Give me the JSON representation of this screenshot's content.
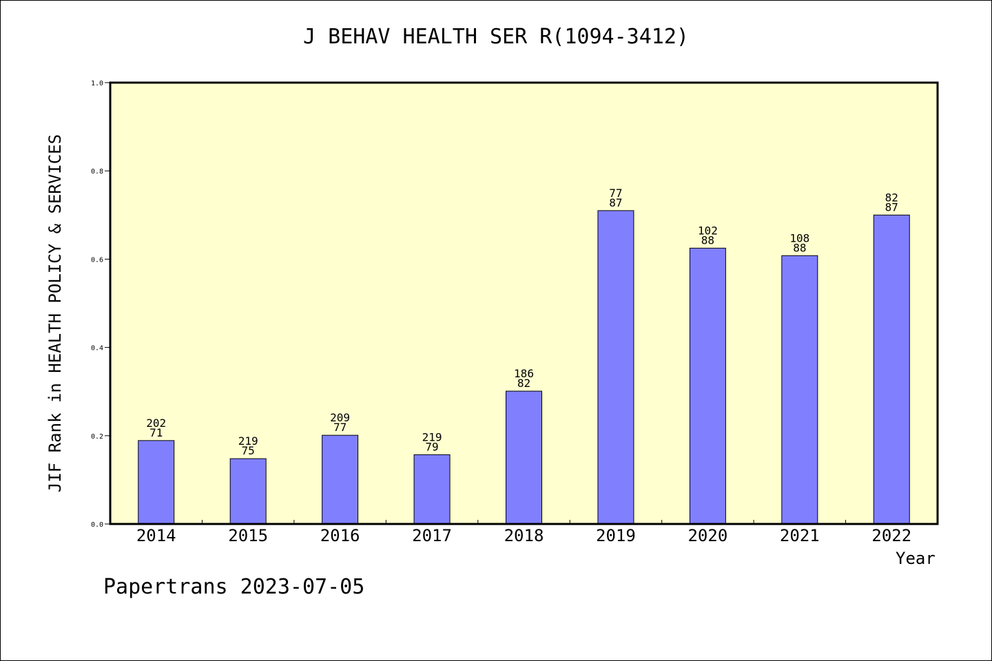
{
  "colors": {
    "plot_bg": "#ffffd0",
    "bar": "#8080ff",
    "axis": "#000000"
  },
  "footer": "Papertrans 2023-07-05",
  "chart_data": {
    "type": "bar",
    "title": "J BEHAV HEALTH SER R(1094-3412)",
    "xlabel": "Year",
    "ylabel": "JIF Rank in HEALTH POLICY & SERVICES",
    "ylim": [
      0,
      1.0
    ],
    "yticks": [
      "0.0",
      "0.2",
      "0.4",
      "0.6",
      "0.8",
      "1.0"
    ],
    "grid": false,
    "categories": [
      "2014",
      "2015",
      "2016",
      "2017",
      "2018",
      "2019",
      "2020",
      "2021",
      "2022"
    ],
    "values": [
      0.189,
      0.148,
      0.201,
      0.157,
      0.301,
      0.71,
      0.625,
      0.608,
      0.7
    ],
    "labels_top": [
      "202",
      "219",
      "209",
      "219",
      "186",
      "77",
      "102",
      "108",
      "82"
    ],
    "labels_bottom": [
      "71",
      "75",
      "77",
      "79",
      "82",
      "87",
      "88",
      "88",
      "87"
    ]
  }
}
